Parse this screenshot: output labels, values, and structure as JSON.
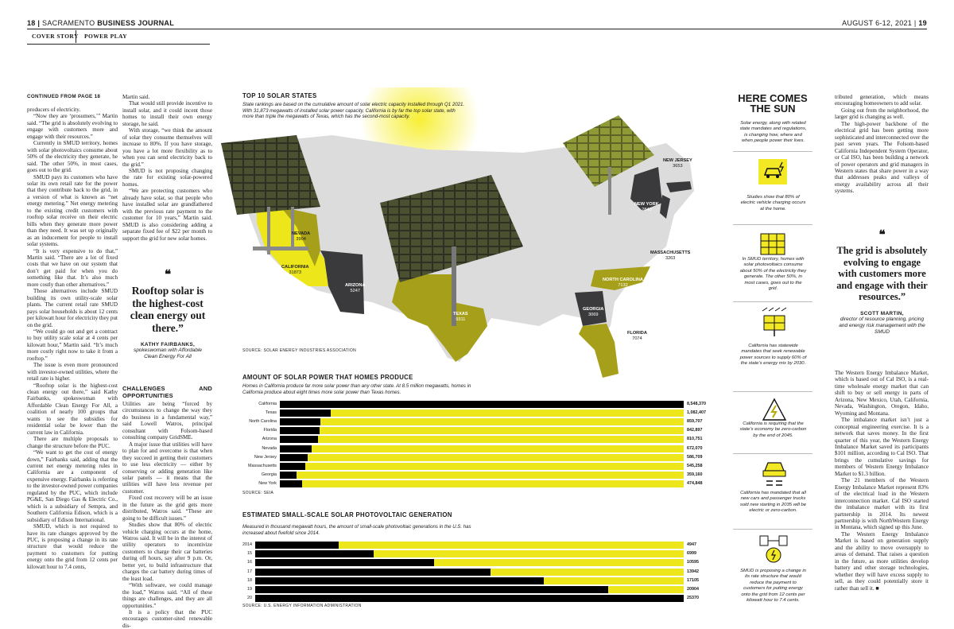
{
  "header": {
    "page_num_left": "18",
    "pub_part1": "SACRAMENTO",
    "pub_part2": "BUSINESS JOURNAL",
    "date": "AUGUST 6-12, 2021",
    "page_num_right": "19",
    "sections": [
      "COVER STORY",
      "POWER PLAY"
    ]
  },
  "col1": {
    "continued": "CONTINUED FROM PAGE 18",
    "paras": [
      "producers of electricity.",
      "“Now they are ‘prosumers,’” Martin said. “The grid is absolutely evolving to engage with customers more and engage with their resources.”",
      "Currently in SMUD territory, homes with solar photovoltaics consume about 50% of the electricity they generate, he said. The other 50%, in most cases, goes out to the grid.",
      "SMUD pays its customers who have solar its own retail rate for the power that they contribute back to the grid, in a version of what is known as “net energy metering.” Net energy metering to the existing credit customers with rooftop solar receive on their electric bills when they generate more power than they need. It was set up originally as an inducement for people to install solar systems.",
      "“It is very expensive to do that,” Martin said. “There are a lot of fixed costs that we have on our system that don’t get paid for when you do something like that. It’s also much more costly than other alternatives.”",
      "Those alternatives include SMUD building its own utility-scale solar plants. The current retail rate SMUD pays solar households is about 12 cents per kilowatt hour for electricity they put on the grid.",
      "“We could go out and get a contract to buy utility scale solar at 4 cents per kilowatt hour,” Martin said. “It’s much more costly right now to take it from a rooftop.”",
      "The issue is even more pronounced with investor-owned utilities, where the retail rate is higher.",
      "“Rooftop solar is the highest-cost clean energy out there,” said Kathy Fairbanks, spokeswoman with Affordable Clean Energy For All, a coalition of nearly 100 groups that wants to see the subsidies for residential solar be lower than the current law in California.",
      "There are multiple proposals to change the structure before the PUC.",
      "“We want to get the cost of energy down,” Fairbanks said, adding that the current net energy metering rules in California are a component of expensive energy. Fairbanks is referring to the investor-owned power companies regulated by the PUC, which include PG&E, San Diego Gas & Electric Co., which is a subsidiary of Sempra, and Southern California Edison, which is a subsidiary of Edison International.",
      "SMUD, which is not required to have its rate changes approved by the PUC, is proposing a change in its rate structure that would reduce the payment to customers for putting energy onto the grid from 12 cents per kilowatt hour to 7.4 cents,"
    ]
  },
  "col2": {
    "paras_top": [
      "Martin said.",
      "That would still provide incentive to install solar, and it could incent those homes to install their own energy storage, he said.",
      "With storage, “we think the amount of solar they consume themselves will increase to 80%. If you have storage, you have a lot more flexibility as to when you can send electricity back to the grid.”",
      "SMUD is not proposing changing the rate for existing solar-powered homes.",
      "“We are protecting customers who already have solar, so that people who have installed solar are grandfathered with the previous rate payment to the customer for 10 years,” Martin said. SMUD is also considering adding a separate fixed fee of $22 per month to support the grid for new solar homes."
    ],
    "subhead": "CHALLENGES AND OPPORTUNITIES",
    "paras_bottom": [
      "Utilities are being “forced by circumstances to change the way they do business in a fundamental way,” said Lowell Watros, principal consultant with Folsom-based consulting company GridSME.",
      "A major issue that utilities will have to plan for and overcome is that when they succeed in getting their customers to use less electricity — either by conserving or adding generation like solar panels — it means that the utilities will have less revenue per customer.",
      "Fixed cost recovery will be an issue in the future as the grid gets more distributed, Watros said. “These are going to be difficult issues.”",
      "Studies show that 80% of electric vehicle charging occurs at the home, Watros said. It will be in the interest of utility operators to incentivize customers to charge their car batteries during off hours, say after 9 p.m. Or, better yet, to build infrastructure that charges the car battery during times of the least load.",
      "“With software, we could manage the load,” Watros said. “All of these things are challenges, and they are all opportunities.”",
      "It is a policy that the PUC encourages customer-sited renewable dis-"
    ]
  },
  "pullquote1": {
    "mark": "❝",
    "text": "Rooftop solar is the highest-cost clean energy out there.”",
    "author": "KATHY FAIRBANKS,",
    "role": "spokeswoman with Affordable Clean Energy For All"
  },
  "map": {
    "title": "TOP 10 SOLAR STATES",
    "subtitle": "State rankings are based on the cumulative amount of solar electric capacity installed through Q1 2021. With 31,873 megawatts of installed solar power capacity, California is by far the top solar state, with more than triple the megawatts of Texas, which has the second-most capacity.",
    "source": "SOURCE: SOLAR ENERGY INDUSTRIES ASSOCIATION",
    "states": [
      {
        "name": "NEVADA",
        "value": "3904"
      },
      {
        "name": "CALIFORNIA",
        "value": "31873"
      },
      {
        "name": "ARIZONA",
        "value": "5247"
      },
      {
        "name": "TEXAS",
        "value": "9311"
      },
      {
        "name": "NEW JERSEY",
        "value": "3653"
      },
      {
        "name": "NEW YORK",
        "value": "2840"
      },
      {
        "name": "MASSACHUSETTS",
        "value": "3263"
      },
      {
        "name": "NORTH CAROLINA",
        "value": "7132"
      },
      {
        "name": "GEORGIA",
        "value": "3069"
      },
      {
        "name": "FLORIDA",
        "value": "7074"
      }
    ],
    "colors": {
      "yellow": "#ece61b",
      "dark": "#3a3a3c",
      "olive": "#a69f1a",
      "land": "#dcdcdc"
    }
  },
  "chart_data": [
    {
      "type": "bar",
      "title": "AMOUNT OF SOLAR POWER THAT HOMES PRODUCE",
      "subtitle": "Homes in California produce far more solar power than any other state. At 8.5 million megawatts, homes in California produce about eight times more solar power than Texas homes.",
      "source": "SOURCE: SEIA",
      "categories": [
        "California",
        "Texas",
        "North Carolina",
        "Florida",
        "Arizona",
        "Nevada",
        "New Jersey",
        "Massachusetts",
        "Georgia",
        "New York"
      ],
      "values": [
        8548370,
        1082407,
        859707,
        842897,
        810751,
        672070,
        586709,
        545258,
        359160,
        474848
      ],
      "labels": [
        "8,548,370",
        "1,082,407",
        "859,707",
        "842,897",
        "810,751",
        "672,070",
        "586,709",
        "545,258",
        "359,160",
        "474,848"
      ],
      "max": 8548370,
      "colors": {
        "fill": "#000000",
        "track": "#ece61b"
      }
    },
    {
      "type": "bar",
      "title": "ESTIMATED SMALL-SCALE SOLAR PHOTOVOLTAIC GENERATION",
      "subtitle": "Measured in thousand megawatt hours, the amount of small-scale photovoltaic generations in the U.S. has increased about fivefold since 2014.",
      "source": "SOURCE: U.S. ENERGY INFORMATION ADMINISTRATION",
      "categories": [
        "2014",
        "15",
        "16",
        "17",
        "18",
        "19",
        "20"
      ],
      "values": [
        4947,
        6999,
        10595,
        13942,
        17105,
        20904,
        25370
      ],
      "labels": [
        "4947",
        "6999",
        "10595",
        "13942",
        "17105",
        "20904",
        "25370"
      ],
      "max": 25370,
      "colors": {
        "fill": "#000000",
        "track": "#ece61b"
      }
    }
  ],
  "sidebar": {
    "title_line1": "HERE COMES",
    "title_line2": "THE SUN",
    "intro": "Solar energy, along with related state mandates and regulations, is changing how, where and when people power their lives.",
    "facts": [
      "Studies show that 80% of electric vehicle charging occurs at the home.",
      "In SMUD territory, homes with solar photovoltaics consume about 50% of the electricity they generate. The other 50%, in most cases, goes out to the grid.",
      "California has statewide mandates that seek renewable power sources to supply 60% of the state’s energy mix by 2030.",
      "California is requiring that the state’s economy be zero-carbon by the end of 2045.",
      "California has mandated that all new cars and passenger trucks sold new starting in 2035 will be electric or zero-carbon.",
      "SMUD is proposing a change in its rate structure that would reduce the payment to customers for putting energy onto the grid from 12 cents per kilowatt hour to 7.4 cents."
    ],
    "icons": [
      "ev-charging-icon",
      "solar-home-icon",
      "solar-panel-icon",
      "recycle-energy-icon",
      "electric-car-icon",
      "grid-meter-icon"
    ]
  },
  "col_right": {
    "paras_top": [
      "tributed generation, which means encouraging homeowners to add solar.",
      "Going out from the neighborhood, the larger grid is changing as well.",
      "The high-power backbone of the electrical grid has been getting more sophisticated and interconnected over the past seven years. The Folsom-based California Independent System Operator, or Cal ISO, has been building a network of power operators and grid managers in Western states that share power in a way that addresses peaks and valleys of energy availability across all their systems."
    ],
    "paras_bottom": [
      "The Western Energy Imbalance Market, which is based out of Cal ISO, is a real-time wholesale energy market that can shift to buy or sell energy in parts of Arizona, New Mexico, Utah, California, Nevada, Washington, Oregon, Idaho, Wyoming and Montana.",
      "The imbalance market isn’t just a conceptual engineering exercise. It is a network that saves money. In the first quarter of this year, the Western Energy Imbalance Market saved its participants $101 million, according to Cal ISO. That brings the cumulative savings for members of Western Energy Imbalance Market to $1.3 billion.",
      "The 21 members of the Western Energy Imbalance Market represent 83% of the electrical load in the Western interconnection market. Cal ISO started the imbalance market with its first partnership in 2014. Its newest partnership is with NorthWestern Energy in Montana, which signed up this June.",
      "The Western Energy Imbalance Market is based on generation supply and the ability to move oversupply to areas of demand. That raises a question in the future, as more utilities develop battery and other storage technologies, whether they will have excess supply to sell, as they could potentially store it rather than sell it. ■"
    ]
  },
  "pullquote2": {
    "mark": "❝",
    "text": "The grid is absolutely evolving to engage with customers more and engage with their resources.”",
    "author": "SCOTT MARTIN,",
    "role": "director of resource planning, pricing and energy risk management with the SMUD"
  }
}
